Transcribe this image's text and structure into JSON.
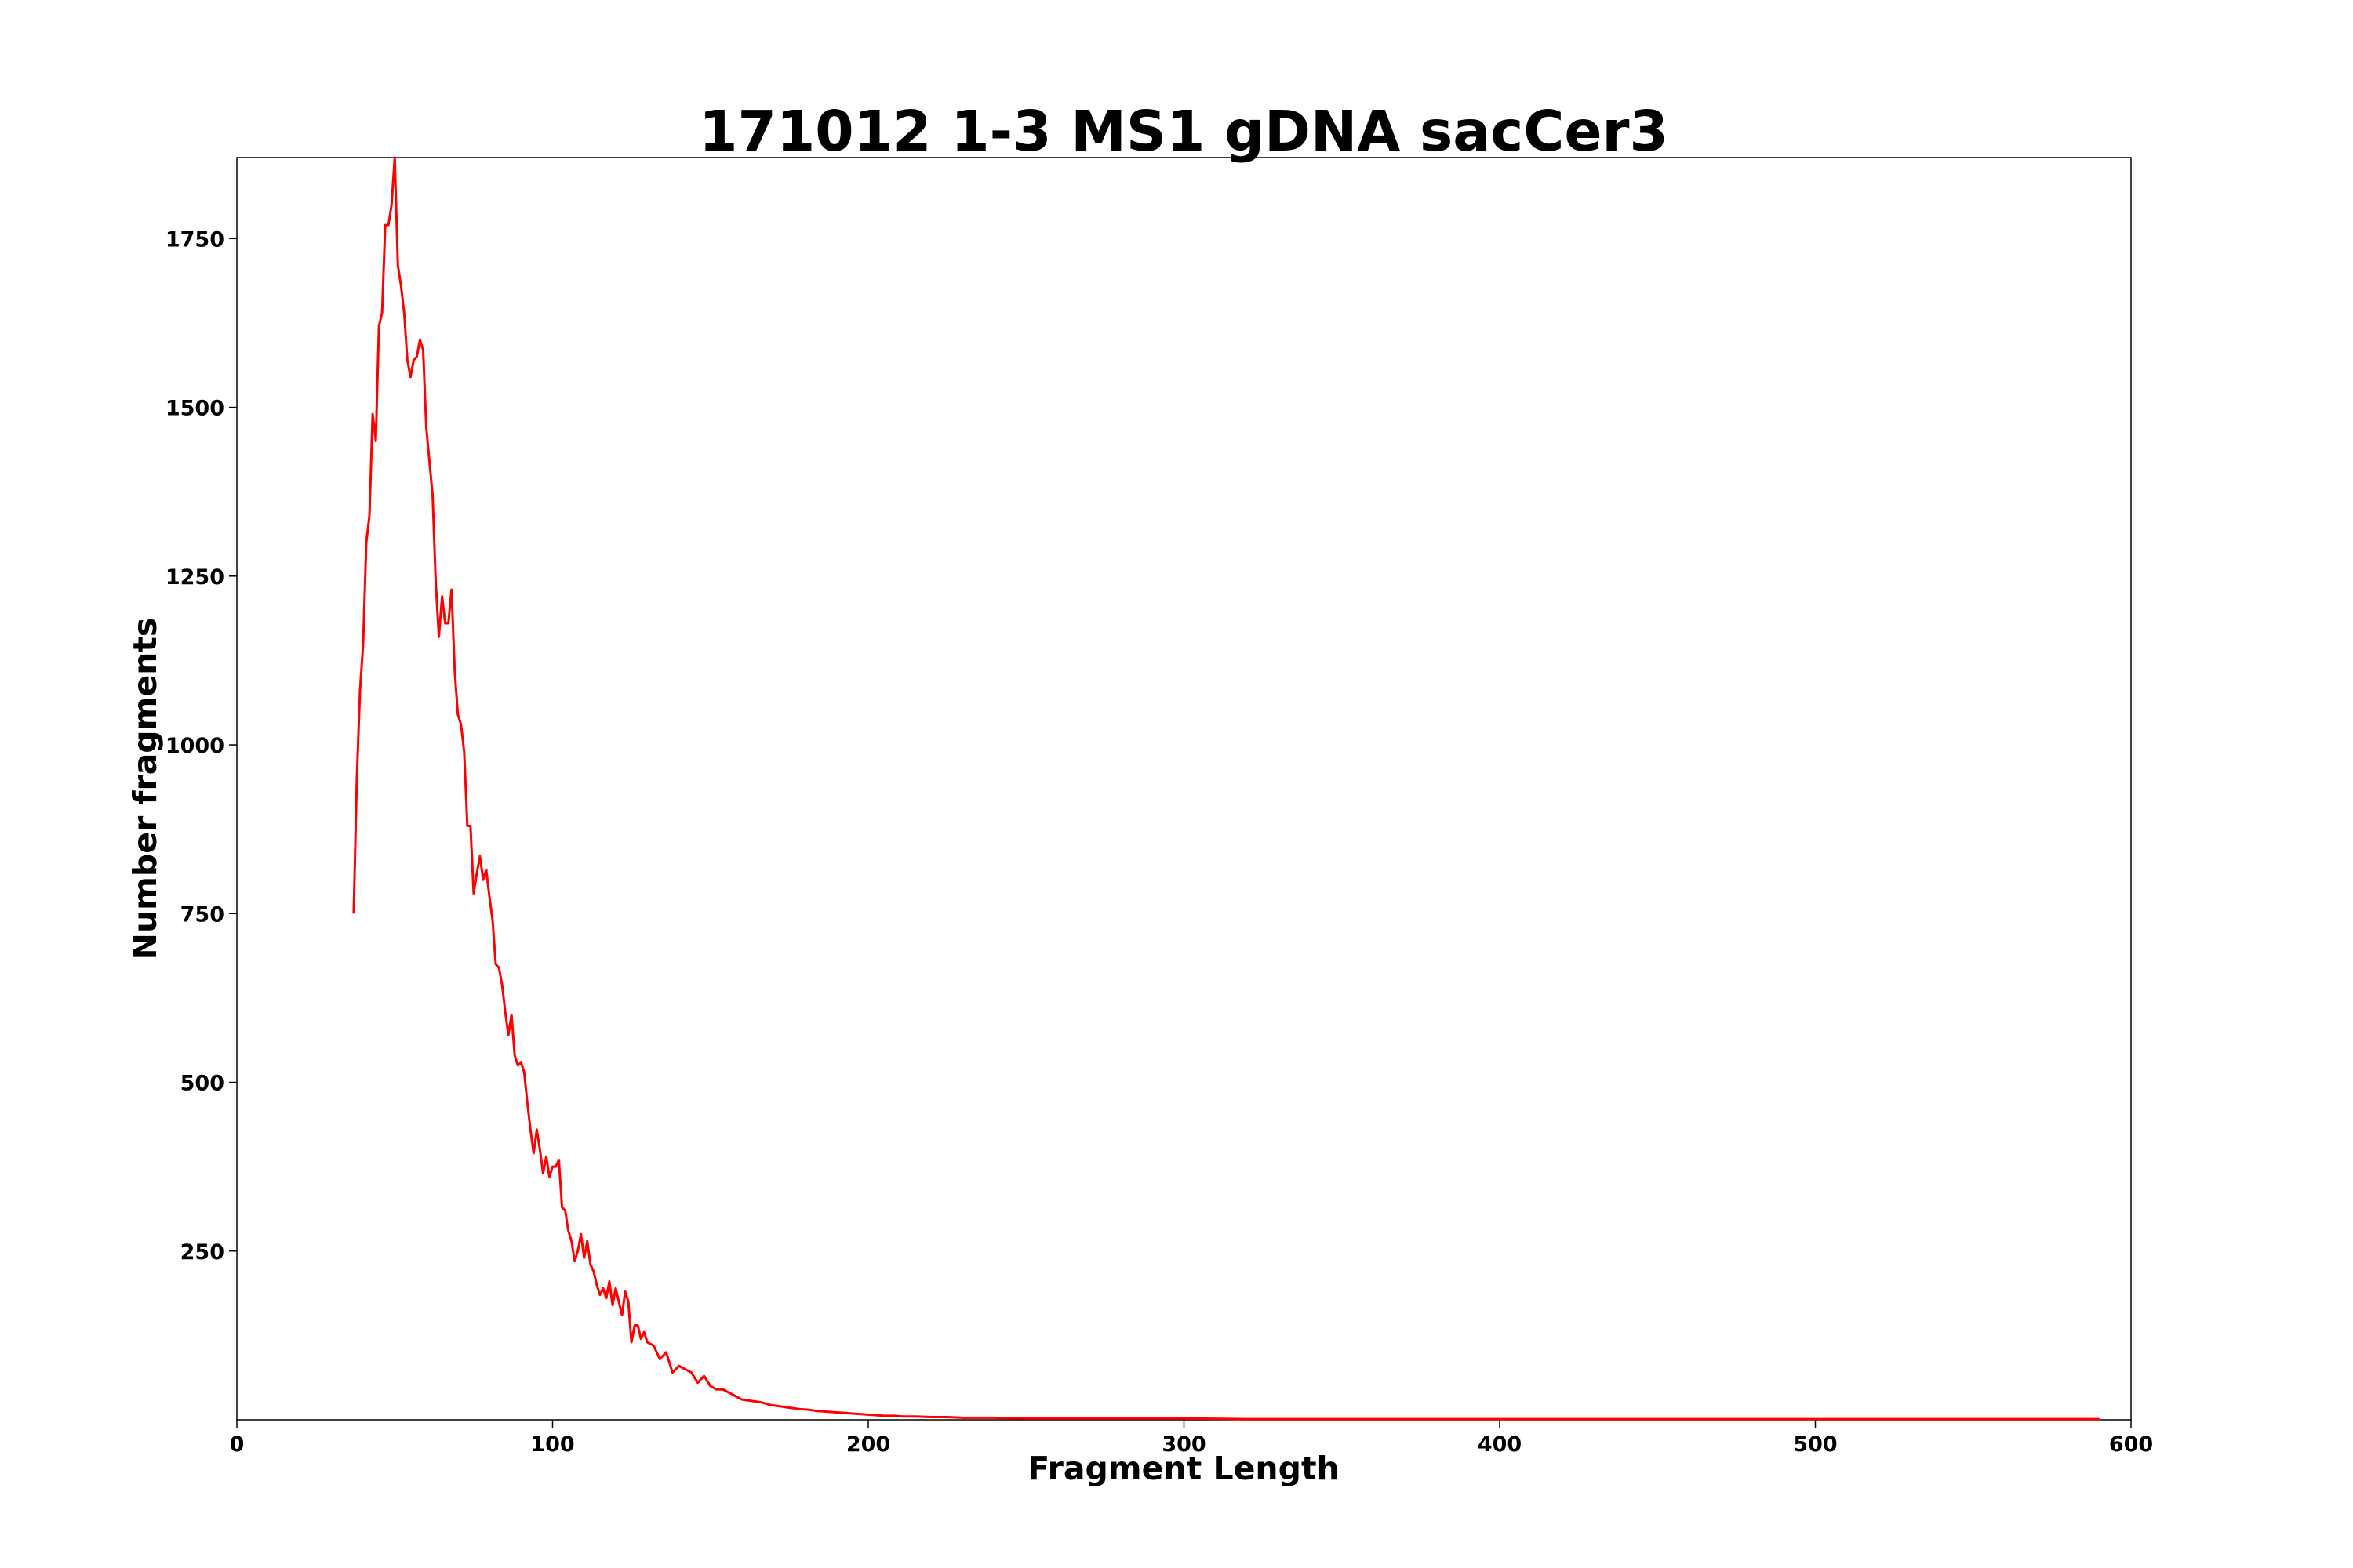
{
  "chart_data": {
    "type": "line",
    "title": "171012 1-3 MS1 gDNA sacCer3",
    "xlabel": "Fragment Length",
    "ylabel": "Number fragments",
    "xlim": [
      0,
      600
    ],
    "ylim": [
      0,
      1870
    ],
    "xticks": [
      0,
      100,
      200,
      300,
      400,
      500,
      600
    ],
    "yticks": [
      250,
      500,
      750,
      1000,
      1250,
      1500,
      1750
    ],
    "grid": false,
    "legend": "none",
    "line_color": "#ff0000",
    "series": [
      {
        "x": [
          37,
          38,
          39,
          40,
          41,
          42,
          43,
          44,
          45,
          46,
          47,
          48,
          49,
          50,
          51,
          52,
          53,
          54,
          55,
          56,
          57,
          58,
          59,
          60,
          61,
          62,
          63,
          64,
          65,
          66,
          67,
          68,
          69,
          70,
          71,
          72,
          73,
          74,
          75,
          76,
          77,
          78,
          79,
          80,
          81,
          82,
          83,
          84,
          85,
          86,
          87,
          88,
          89,
          90,
          91,
          92,
          93,
          94,
          95,
          96,
          97,
          98,
          99,
          100,
          101,
          102,
          103,
          104,
          105,
          106,
          107,
          108,
          109,
          110,
          111,
          112,
          113,
          114,
          115,
          116,
          117,
          118,
          119,
          120,
          121,
          122,
          123,
          124,
          125,
          126,
          127,
          128,
          129,
          130,
          132,
          134,
          136,
          138,
          140,
          142,
          144,
          146,
          148,
          150,
          152,
          154,
          156,
          158,
          160,
          163,
          166,
          169,
          172,
          175,
          178,
          181,
          184,
          187,
          190,
          193,
          196,
          199,
          202,
          205,
          208,
          211,
          215,
          220,
          225,
          230,
          235,
          240,
          250,
          260,
          270,
          280,
          300,
          320,
          350,
          400,
          450,
          500,
          550,
          590
        ],
        "y": [
          750,
          950,
          1080,
          1150,
          1300,
          1340,
          1490,
          1450,
          1620,
          1640,
          1770,
          1770,
          1800,
          1870,
          1710,
          1680,
          1640,
          1570,
          1545,
          1570,
          1575,
          1600,
          1585,
          1470,
          1420,
          1370,
          1240,
          1160,
          1220,
          1180,
          1180,
          1230,
          1110,
          1045,
          1030,
          990,
          880,
          880,
          780,
          810,
          835,
          800,
          815,
          775,
          740,
          675,
          670,
          645,
          605,
          570,
          600,
          540,
          525,
          530,
          515,
          470,
          430,
          395,
          430,
          400,
          365,
          390,
          360,
          375,
          375,
          385,
          315,
          310,
          280,
          265,
          235,
          250,
          275,
          240,
          265,
          230,
          220,
          200,
          185,
          195,
          180,
          205,
          170,
          195,
          175,
          155,
          190,
          175,
          115,
          140,
          140,
          120,
          130,
          115,
          110,
          90,
          100,
          70,
          80,
          75,
          70,
          55,
          65,
          50,
          45,
          45,
          40,
          35,
          30,
          28,
          26,
          22,
          20,
          18,
          16,
          15,
          13,
          12,
          11,
          10,
          9,
          8,
          7,
          6,
          6,
          5,
          5,
          4,
          4,
          3,
          3,
          3,
          2,
          2,
          2,
          2,
          2,
          1,
          1,
          1,
          1,
          1,
          1,
          1
        ]
      }
    ]
  }
}
